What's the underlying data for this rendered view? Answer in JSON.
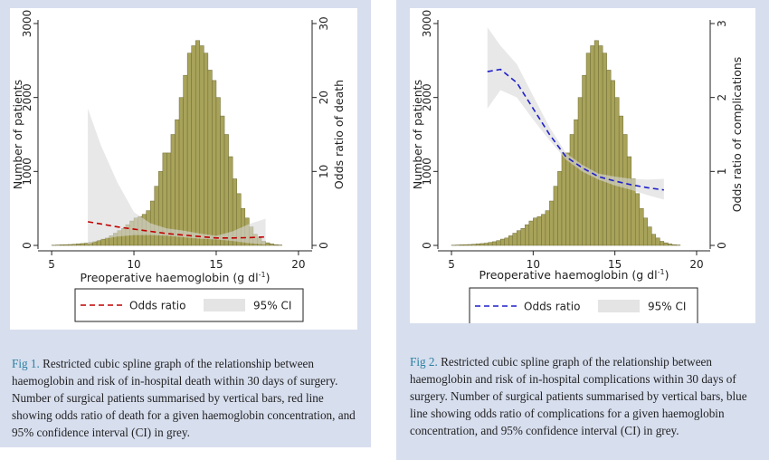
{
  "colors": {
    "bar_fill": "#a8a35a",
    "bar_stroke": "#6f6b35",
    "ci_fill": "#d9d9d9",
    "fig1_line": "#c00000",
    "fig2_line": "#1f1fc9",
    "caption_label": "#2a7fa0",
    "panel_bg": "#d7deee"
  },
  "figures": [
    {
      "caption_label": "Fig 1.",
      "caption_text": " Restricted cubic spline graph of the relationship between haemoglobin and risk of in-hospital death within 30 days of surgery. Number of surgical patients summarised by vertical bars, red line showing odds ratio of death for a given haemoglobin concentration, and 95% confidence interval (CI) in grey.",
      "legend": {
        "line_label": "Odds ratio",
        "ci_label": "95% CI"
      }
    },
    {
      "caption_label": "Fig 2.",
      "caption_text": " Restricted cubic spline graph of the relationship between haemoglobin and risk of in-hospital complications within 30 days of surgery. Number of surgical patients summarised by vertical bars, blue line showing odds ratio of complications for a given haemoglobin concentration, and 95% confidence interval (CI) in grey.",
      "legend": {
        "line_label": "Odds ratio",
        "ci_label": "95% CI"
      }
    }
  ],
  "chart_data": [
    {
      "type": "bar",
      "xlabel_main": "Preoperative haemoglobin  (g dl",
      "xlabel_sup": "-1",
      "xlabel_end": ")",
      "ylabel_left": "Number of patients",
      "ylabel_right": "Odds ratio of death",
      "xlim": [
        4.5,
        20.5
      ],
      "xticks": [
        5,
        10,
        15,
        20
      ],
      "ylim_left": [
        0,
        3000
      ],
      "yticks_left": [
        0,
        1000,
        2000,
        3000
      ],
      "ylim_right": [
        0,
        30
      ],
      "yticks_right": [
        0,
        10,
        20,
        30
      ],
      "grid": false,
      "legend_position": "bottom",
      "histogram": {
        "name": "Number of patients",
        "bin_width": 0.25,
        "x_start": 5.0,
        "counts": [
          3,
          5,
          8,
          10,
          12,
          15,
          20,
          25,
          30,
          40,
          50,
          65,
          85,
          100,
          130,
          165,
          200,
          230,
          280,
          330,
          370,
          390,
          420,
          470,
          600,
          800,
          1000,
          1250,
          1250,
          1500,
          1700,
          2000,
          2300,
          2600,
          2700,
          2770,
          2700,
          2600,
          2370,
          2230,
          2000,
          1750,
          1500,
          1200,
          900,
          700,
          500,
          370,
          250,
          150,
          100,
          55,
          35,
          20,
          10,
          5
        ]
      },
      "odds_ratio": {
        "name": "Odds ratio",
        "x": [
          7.2,
          8,
          9,
          10,
          11,
          12,
          13,
          14,
          15,
          16,
          17,
          18
        ],
        "y": [
          3.2,
          2.9,
          2.5,
          2.2,
          1.9,
          1.6,
          1.4,
          1.2,
          1.0,
          1.0,
          1.05,
          1.15
        ],
        "ci_lower": [
          0.1,
          0.8,
          1.2,
          1.4,
          1.4,
          1.3,
          1.1,
          0.9,
          0.8,
          0.6,
          0.3,
          0.1
        ],
        "ci_upper": [
          18.5,
          13.5,
          8.5,
          4.5,
          3.0,
          2.3,
          2.0,
          1.6,
          1.3,
          1.9,
          2.9,
          3.6
        ]
      }
    },
    {
      "type": "bar",
      "xlabel_main": "Preoperative haemoglobin  (g dl",
      "xlabel_sup": "-1",
      "xlabel_end": ")",
      "ylabel_left": "Number of patients",
      "ylabel_right": "Odds ratio of complications",
      "xlim": [
        4.5,
        20.5
      ],
      "xticks": [
        5,
        10,
        15,
        20
      ],
      "ylim_left": [
        0,
        3000
      ],
      "yticks_left": [
        0,
        1000,
        2000,
        3000
      ],
      "ylim_right": [
        0,
        3
      ],
      "yticks_right": [
        0,
        1,
        2,
        3
      ],
      "grid": false,
      "legend_position": "bottom",
      "histogram": {
        "name": "Number of patients",
        "bin_width": 0.25,
        "x_start": 5.0,
        "counts": [
          3,
          5,
          8,
          10,
          12,
          15,
          20,
          25,
          30,
          40,
          50,
          65,
          85,
          100,
          130,
          165,
          200,
          230,
          280,
          330,
          370,
          390,
          420,
          470,
          600,
          800,
          1000,
          1250,
          1250,
          1500,
          1700,
          2000,
          2300,
          2600,
          2700,
          2770,
          2700,
          2600,
          2370,
          2230,
          2000,
          1750,
          1500,
          1200,
          900,
          700,
          500,
          370,
          250,
          150,
          100,
          55,
          35,
          20,
          10,
          5
        ]
      },
      "odds_ratio": {
        "name": "Odds ratio",
        "x": [
          7.2,
          8,
          9,
          10,
          11,
          12,
          13,
          14,
          15,
          16,
          17,
          18
        ],
        "y": [
          2.35,
          2.38,
          2.2,
          1.85,
          1.5,
          1.2,
          1.05,
          0.93,
          0.87,
          0.82,
          0.78,
          0.75
        ],
        "ci_lower": [
          1.85,
          2.1,
          2.0,
          1.7,
          1.42,
          1.16,
          1.0,
          0.89,
          0.81,
          0.75,
          0.68,
          0.62
        ],
        "ci_upper": [
          2.95,
          2.7,
          2.45,
          2.02,
          1.6,
          1.25,
          1.09,
          0.97,
          0.93,
          0.9,
          0.89,
          0.9
        ]
      }
    }
  ]
}
